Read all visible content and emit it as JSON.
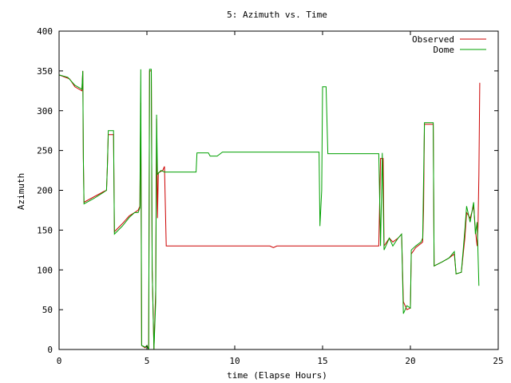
{
  "chart_data": {
    "type": "line",
    "title": "5: Azimuth vs. Time",
    "xlabel": "time (Elapse Hours)",
    "ylabel": "Azimuth",
    "xlim": [
      0,
      25
    ],
    "ylim": [
      0,
      400
    ],
    "xticks": [
      0,
      5,
      10,
      15,
      20,
      25
    ],
    "yticks": [
      0,
      50,
      100,
      150,
      200,
      250,
      300,
      350,
      400
    ],
    "xtick_labels": [
      "0",
      "5",
      "10",
      "15",
      "20",
      "25"
    ],
    "ytick_labels": [
      "0",
      "50",
      "100",
      "150",
      "200",
      "250",
      "300",
      "350",
      "400"
    ],
    "grid": false,
    "legend_position": "top-right",
    "series": [
      {
        "name": "Observed",
        "color": "#cc0000",
        "points": [
          [
            0,
            345
          ],
          [
            0.6,
            340
          ],
          [
            0.9,
            330
          ],
          [
            1.3,
            325
          ],
          [
            1.35,
            350
          ],
          [
            1.38,
            240
          ],
          [
            1.42,
            185
          ],
          [
            2.0,
            192
          ],
          [
            2.5,
            198
          ],
          [
            2.7,
            200
          ],
          [
            2.75,
            230
          ],
          [
            2.8,
            270
          ],
          [
            3.1,
            270
          ],
          [
            3.15,
            148
          ],
          [
            3.6,
            158
          ],
          [
            4.0,
            168
          ],
          [
            4.3,
            172
          ],
          [
            4.5,
            175
          ],
          [
            4.6,
            180
          ],
          [
            4.65,
            310
          ],
          [
            4.7,
            5
          ],
          [
            4.9,
            2
          ],
          [
            5.0,
            5
          ],
          [
            5.1,
            0
          ],
          [
            5.15,
            350
          ],
          [
            5.25,
            350
          ],
          [
            5.3,
            100
          ],
          [
            5.4,
            0
          ],
          [
            5.5,
            75
          ],
          [
            5.55,
            290
          ],
          [
            5.6,
            165
          ],
          [
            5.65,
            222
          ],
          [
            5.9,
            225
          ],
          [
            6.0,
            230
          ],
          [
            6.1,
            130
          ],
          [
            9.0,
            130
          ],
          [
            12.0,
            130
          ],
          [
            12.2,
            128
          ],
          [
            12.4,
            130
          ],
          [
            15.0,
            130
          ],
          [
            18.2,
            130
          ],
          [
            18.3,
            240
          ],
          [
            18.45,
            240
          ],
          [
            18.5,
            130
          ],
          [
            18.8,
            140
          ],
          [
            19.0,
            135
          ],
          [
            19.3,
            140
          ],
          [
            19.5,
            145
          ],
          [
            19.6,
            60
          ],
          [
            19.8,
            50
          ],
          [
            20.0,
            52
          ],
          [
            20.05,
            120
          ],
          [
            20.3,
            128
          ],
          [
            20.6,
            133
          ],
          [
            20.7,
            135
          ],
          [
            20.75,
            175
          ],
          [
            20.8,
            283
          ],
          [
            21.3,
            283
          ],
          [
            21.35,
            105
          ],
          [
            21.8,
            110
          ],
          [
            22.2,
            115
          ],
          [
            22.5,
            120
          ],
          [
            22.6,
            95
          ],
          [
            22.9,
            97
          ],
          [
            23.1,
            140
          ],
          [
            23.2,
            172
          ],
          [
            23.4,
            165
          ],
          [
            23.6,
            180
          ],
          [
            23.7,
            150
          ],
          [
            23.8,
            130
          ],
          [
            23.85,
            155
          ],
          [
            23.9,
            220
          ],
          [
            23.95,
            335
          ]
        ]
      },
      {
        "name": "Dome",
        "color": "#00a000",
        "points": [
          [
            0,
            345
          ],
          [
            0.5,
            342
          ],
          [
            0.9,
            332
          ],
          [
            1.3,
            327
          ],
          [
            1.35,
            350
          ],
          [
            1.38,
            240
          ],
          [
            1.42,
            183
          ],
          [
            2.0,
            190
          ],
          [
            2.5,
            197
          ],
          [
            2.7,
            200
          ],
          [
            2.75,
            230
          ],
          [
            2.8,
            275
          ],
          [
            3.1,
            275
          ],
          [
            3.15,
            145
          ],
          [
            3.6,
            155
          ],
          [
            4.0,
            166
          ],
          [
            4.3,
            172
          ],
          [
            4.5,
            172
          ],
          [
            4.6,
            178
          ],
          [
            4.65,
            352
          ],
          [
            4.7,
            5
          ],
          [
            4.9,
            3
          ],
          [
            5.0,
            5
          ],
          [
            5.1,
            0
          ],
          [
            5.15,
            352
          ],
          [
            5.25,
            352
          ],
          [
            5.3,
            100
          ],
          [
            5.4,
            0
          ],
          [
            5.5,
            60
          ],
          [
            5.55,
            295
          ],
          [
            5.6,
            220
          ],
          [
            5.8,
            225
          ],
          [
            6.0,
            223
          ],
          [
            7.0,
            223
          ],
          [
            7.8,
            223
          ],
          [
            7.85,
            247
          ],
          [
            8.5,
            247
          ],
          [
            8.6,
            243
          ],
          [
            9.0,
            243
          ],
          [
            9.3,
            248
          ],
          [
            14.8,
            248
          ],
          [
            14.85,
            155
          ],
          [
            14.95,
            200
          ],
          [
            15.0,
            330
          ],
          [
            15.2,
            330
          ],
          [
            15.3,
            246
          ],
          [
            18.2,
            246
          ],
          [
            18.3,
            130
          ],
          [
            18.4,
            247
          ],
          [
            18.5,
            125
          ],
          [
            18.8,
            140
          ],
          [
            19.0,
            130
          ],
          [
            19.3,
            140
          ],
          [
            19.5,
            145
          ],
          [
            19.6,
            45
          ],
          [
            19.8,
            55
          ],
          [
            20.0,
            52
          ],
          [
            20.05,
            125
          ],
          [
            20.3,
            130
          ],
          [
            20.6,
            135
          ],
          [
            20.7,
            140
          ],
          [
            20.8,
            285
          ],
          [
            21.3,
            285
          ],
          [
            21.35,
            105
          ],
          [
            21.8,
            110
          ],
          [
            22.2,
            115
          ],
          [
            22.5,
            123
          ],
          [
            22.6,
            95
          ],
          [
            22.9,
            97
          ],
          [
            23.1,
            150
          ],
          [
            23.2,
            180
          ],
          [
            23.4,
            160
          ],
          [
            23.6,
            185
          ],
          [
            23.7,
            145
          ],
          [
            23.8,
            160
          ],
          [
            23.9,
            80
          ]
        ]
      }
    ]
  }
}
